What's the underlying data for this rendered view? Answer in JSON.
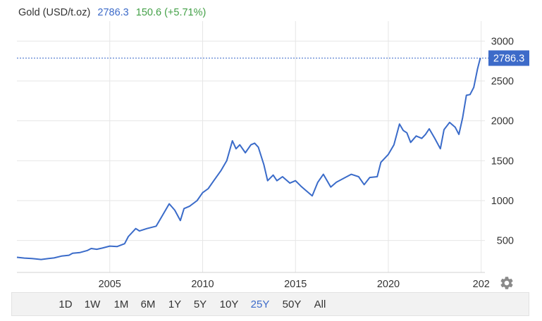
{
  "header": {
    "title": "Gold (USD/t.oz)",
    "price": "2786.3",
    "change": "150.6 (+5.71%)"
  },
  "price_tag": "2786.3",
  "range_buttons": [
    {
      "label": "1D",
      "active": false
    },
    {
      "label": "1W",
      "active": false
    },
    {
      "label": "1M",
      "active": false
    },
    {
      "label": "6M",
      "active": false
    },
    {
      "label": "1Y",
      "active": false
    },
    {
      "label": "5Y",
      "active": false
    },
    {
      "label": "10Y",
      "active": false
    },
    {
      "label": "25Y",
      "active": true
    },
    {
      "label": "50Y",
      "active": false
    },
    {
      "label": "All",
      "active": false
    }
  ],
  "settings_icon": "gear-icon",
  "colors": {
    "line": "#3a6bc9",
    "price_tag_bg": "#3d6bc9",
    "change_positive": "#43a047",
    "grid": "#e6e6e6"
  },
  "chart_data": {
    "type": "line",
    "title": "Gold (USD/t.oz)",
    "xlabel": "",
    "ylabel": "",
    "x_ticks": [
      "2005",
      "2010",
      "2015",
      "2020",
      "202"
    ],
    "y_ticks": [
      500,
      1000,
      1500,
      2000,
      2500,
      3000
    ],
    "xlim": [
      2000.0,
      2025.2
    ],
    "ylim": [
      100,
      3250
    ],
    "y_axis_side": "right",
    "grid": true,
    "current_value": 2786.3,
    "series": [
      {
        "values": [
          [
            2000.0,
            290
          ],
          [
            2000.4,
            280
          ],
          [
            2000.8,
            275
          ],
          [
            2001.0,
            270
          ],
          [
            2001.3,
            262
          ],
          [
            2001.7,
            275
          ],
          [
            2002.0,
            282
          ],
          [
            2002.4,
            305
          ],
          [
            2002.8,
            315
          ],
          [
            2003.0,
            340
          ],
          [
            2003.4,
            350
          ],
          [
            2003.8,
            375
          ],
          [
            2004.0,
            400
          ],
          [
            2004.3,
            390
          ],
          [
            2004.6,
            405
          ],
          [
            2005.0,
            430
          ],
          [
            2005.4,
            425
          ],
          [
            2005.8,
            460
          ],
          [
            2006.0,
            550
          ],
          [
            2006.4,
            650
          ],
          [
            2006.6,
            620
          ],
          [
            2007.0,
            650
          ],
          [
            2007.5,
            680
          ],
          [
            2007.8,
            800
          ],
          [
            2008.0,
            880
          ],
          [
            2008.2,
            960
          ],
          [
            2008.5,
            880
          ],
          [
            2008.8,
            750
          ],
          [
            2009.0,
            900
          ],
          [
            2009.3,
            930
          ],
          [
            2009.7,
            1000
          ],
          [
            2010.0,
            1100
          ],
          [
            2010.3,
            1150
          ],
          [
            2010.6,
            1250
          ],
          [
            2011.0,
            1380
          ],
          [
            2011.3,
            1500
          ],
          [
            2011.6,
            1750
          ],
          [
            2011.8,
            1650
          ],
          [
            2012.0,
            1700
          ],
          [
            2012.3,
            1600
          ],
          [
            2012.6,
            1700
          ],
          [
            2012.8,
            1720
          ],
          [
            2013.0,
            1670
          ],
          [
            2013.3,
            1450
          ],
          [
            2013.5,
            1250
          ],
          [
            2013.8,
            1320
          ],
          [
            2014.0,
            1250
          ],
          [
            2014.3,
            1300
          ],
          [
            2014.7,
            1220
          ],
          [
            2015.0,
            1250
          ],
          [
            2015.3,
            1180
          ],
          [
            2015.7,
            1100
          ],
          [
            2015.9,
            1060
          ],
          [
            2016.2,
            1230
          ],
          [
            2016.5,
            1330
          ],
          [
            2016.9,
            1170
          ],
          [
            2017.2,
            1230
          ],
          [
            2017.6,
            1280
          ],
          [
            2018.0,
            1330
          ],
          [
            2018.4,
            1300
          ],
          [
            2018.7,
            1200
          ],
          [
            2019.0,
            1290
          ],
          [
            2019.4,
            1300
          ],
          [
            2019.6,
            1480
          ],
          [
            2020.0,
            1580
          ],
          [
            2020.3,
            1700
          ],
          [
            2020.6,
            1960
          ],
          [
            2020.8,
            1880
          ],
          [
            2021.0,
            1850
          ],
          [
            2021.2,
            1730
          ],
          [
            2021.5,
            1810
          ],
          [
            2021.8,
            1780
          ],
          [
            2022.0,
            1830
          ],
          [
            2022.2,
            1900
          ],
          [
            2022.5,
            1780
          ],
          [
            2022.8,
            1650
          ],
          [
            2023.0,
            1890
          ],
          [
            2023.3,
            1980
          ],
          [
            2023.6,
            1920
          ],
          [
            2023.8,
            1830
          ],
          [
            2024.0,
            2040
          ],
          [
            2024.2,
            2320
          ],
          [
            2024.4,
            2330
          ],
          [
            2024.6,
            2420
          ],
          [
            2024.8,
            2650
          ],
          [
            2024.95,
            2786.3
          ]
        ]
      }
    ]
  }
}
